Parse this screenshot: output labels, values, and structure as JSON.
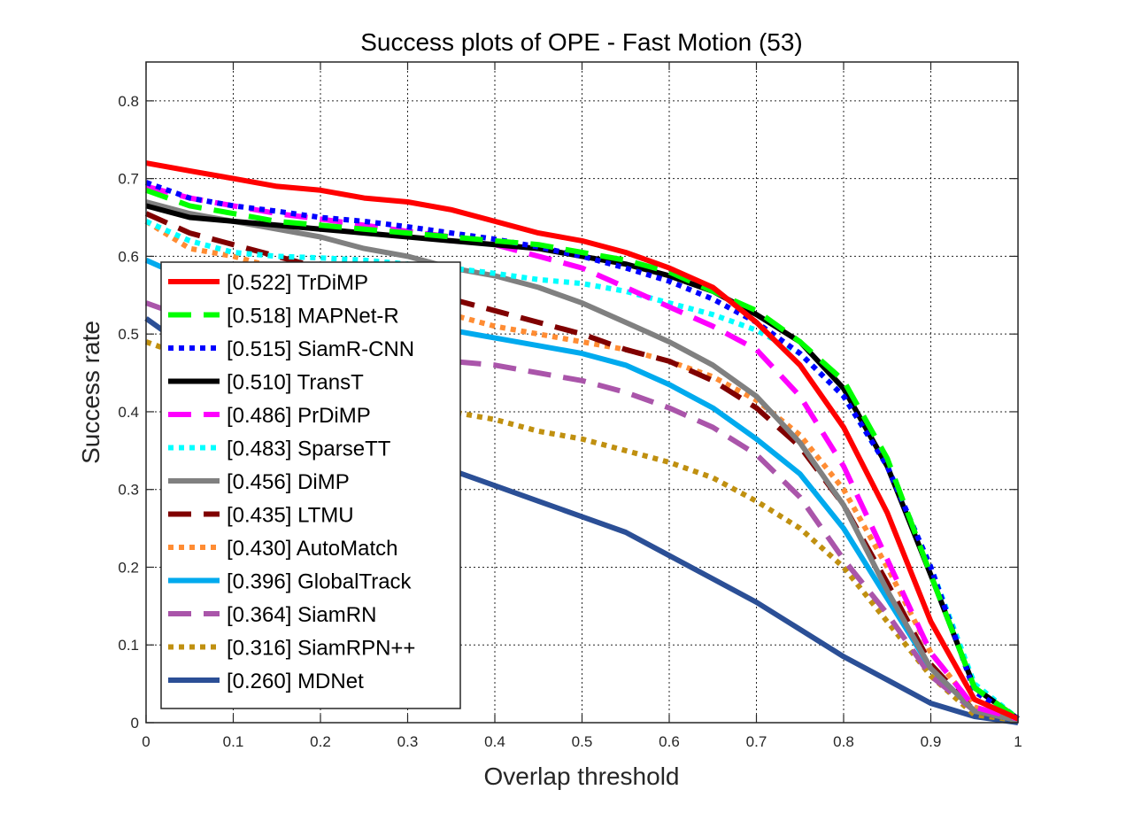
{
  "chart_data": {
    "type": "line",
    "title": "Success plots of OPE - Fast Motion (53)",
    "xlabel": "Overlap threshold",
    "ylabel": "Success rate",
    "xlim": [
      0,
      1
    ],
    "ylim": [
      0,
      0.85
    ],
    "grid": true,
    "legend_position": "left",
    "xticks": [
      0,
      0.1,
      0.2,
      0.3,
      0.4,
      0.5,
      0.6,
      0.7,
      0.8,
      0.9,
      1
    ],
    "yticks": [
      0,
      0.1,
      0.2,
      0.3,
      0.4,
      0.5,
      0.6,
      0.7,
      0.8
    ],
    "xtick_labels": [
      "0",
      "0.1",
      "0.2",
      "0.3",
      "0.4",
      "0.5",
      "0.6",
      "0.7",
      "0.8",
      "0.9",
      "1"
    ],
    "ytick_labels": [
      "0",
      "0.1",
      "0.2",
      "0.3",
      "0.4",
      "0.5",
      "0.6",
      "0.7",
      "0.8"
    ],
    "x": [
      0,
      0.05,
      0.1,
      0.15,
      0.2,
      0.25,
      0.3,
      0.35,
      0.4,
      0.45,
      0.5,
      0.55,
      0.6,
      0.65,
      0.7,
      0.75,
      0.8,
      0.85,
      0.9,
      0.95,
      1
    ],
    "series": [
      {
        "name": "TrDiMP",
        "legend": "[0.522] TrDiMP",
        "color": "#ff0000",
        "style": "solid",
        "values": [
          0.72,
          0.71,
          0.7,
          0.69,
          0.685,
          0.675,
          0.67,
          0.66,
          0.645,
          0.63,
          0.62,
          0.605,
          0.585,
          0.56,
          0.515,
          0.46,
          0.38,
          0.27,
          0.13,
          0.03,
          0.005
        ]
      },
      {
        "name": "MAPNet-R",
        "legend": "[0.518] MAPNet-R",
        "color": "#00ff00",
        "style": "dashed",
        "values": [
          0.685,
          0.665,
          0.655,
          0.645,
          0.64,
          0.635,
          0.63,
          0.625,
          0.62,
          0.615,
          0.605,
          0.595,
          0.58,
          0.555,
          0.53,
          0.49,
          0.44,
          0.34,
          0.19,
          0.045,
          0.005
        ]
      },
      {
        "name": "SiamR-CNN",
        "legend": "[0.515] SiamR-CNN",
        "color": "#0000ff",
        "style": "dotted",
        "values": [
          0.695,
          0.675,
          0.665,
          0.658,
          0.65,
          0.645,
          0.638,
          0.63,
          0.622,
          0.612,
          0.6,
          0.585,
          0.568,
          0.545,
          0.515,
          0.475,
          0.42,
          0.33,
          0.2,
          0.04,
          0.005
        ]
      },
      {
        "name": "TransT",
        "legend": "[0.510] TransT",
        "color": "#000000",
        "style": "solid",
        "values": [
          0.665,
          0.65,
          0.645,
          0.64,
          0.635,
          0.63,
          0.625,
          0.62,
          0.615,
          0.61,
          0.6,
          0.59,
          0.575,
          0.555,
          0.525,
          0.49,
          0.43,
          0.33,
          0.19,
          0.045,
          0.005
        ]
      },
      {
        "name": "PrDiMP",
        "legend": "[0.486] PrDiMP",
        "color": "#ff00ff",
        "style": "dashed",
        "values": [
          0.69,
          0.675,
          0.665,
          0.655,
          0.648,
          0.64,
          0.632,
          0.625,
          0.615,
          0.6,
          0.585,
          0.56,
          0.535,
          0.51,
          0.48,
          0.42,
          0.33,
          0.21,
          0.09,
          0.02,
          0.005
        ]
      },
      {
        "name": "SparseTT",
        "legend": "[0.483] SparseTT",
        "color": "#00ffff",
        "style": "dotted",
        "values": [
          0.645,
          0.62,
          0.605,
          0.6,
          0.598,
          0.595,
          0.59,
          0.585,
          0.578,
          0.57,
          0.565,
          0.555,
          0.54,
          0.525,
          0.505,
          0.475,
          0.42,
          0.33,
          0.2,
          0.05,
          0.005
        ]
      },
      {
        "name": "DiMP",
        "legend": "[0.456] DiMP",
        "color": "#808080",
        "style": "solid",
        "values": [
          0.67,
          0.655,
          0.645,
          0.635,
          0.625,
          0.61,
          0.6,
          0.585,
          0.575,
          0.56,
          0.54,
          0.515,
          0.49,
          0.46,
          0.42,
          0.36,
          0.28,
          0.17,
          0.07,
          0.015,
          0.003
        ]
      },
      {
        "name": "LTMU",
        "legend": "[0.435] LTMU",
        "color": "#800000",
        "style": "dashed",
        "values": [
          0.655,
          0.63,
          0.615,
          0.6,
          0.585,
          0.57,
          0.555,
          0.545,
          0.53,
          0.515,
          0.5,
          0.48,
          0.465,
          0.44,
          0.405,
          0.355,
          0.28,
          0.18,
          0.075,
          0.015,
          0.003
        ]
      },
      {
        "name": "AutoMatch",
        "legend": "[0.430] AutoMatch",
        "color": "#ff8c33",
        "style": "dotted",
        "values": [
          0.645,
          0.61,
          0.6,
          0.585,
          0.57,
          0.555,
          0.54,
          0.525,
          0.51,
          0.5,
          0.49,
          0.48,
          0.465,
          0.445,
          0.415,
          0.37,
          0.3,
          0.2,
          0.09,
          0.02,
          0.003
        ]
      },
      {
        "name": "GlobalTrack",
        "legend": "[0.396] GlobalTrack",
        "color": "#00aaee",
        "style": "solid",
        "values": [
          0.595,
          0.57,
          0.56,
          0.545,
          0.535,
          0.525,
          0.515,
          0.505,
          0.495,
          0.485,
          0.475,
          0.46,
          0.435,
          0.405,
          0.365,
          0.32,
          0.25,
          0.16,
          0.07,
          0.015,
          0.003
        ]
      },
      {
        "name": "SiamRN",
        "legend": "[0.364] SiamRN",
        "color": "#aa55aa",
        "style": "dashed",
        "values": [
          0.54,
          0.52,
          0.505,
          0.495,
          0.485,
          0.475,
          0.47,
          0.465,
          0.46,
          0.45,
          0.44,
          0.425,
          0.405,
          0.38,
          0.345,
          0.29,
          0.21,
          0.14,
          0.06,
          0.015,
          0.003
        ]
      },
      {
        "name": "SiamRPN++",
        "legend": "[0.316] SiamRPN++",
        "color": "#c09010",
        "style": "dotted",
        "values": [
          0.49,
          0.47,
          0.455,
          0.44,
          0.43,
          0.42,
          0.41,
          0.4,
          0.39,
          0.375,
          0.365,
          0.35,
          0.335,
          0.315,
          0.285,
          0.25,
          0.2,
          0.13,
          0.06,
          0.01,
          0.003
        ]
      },
      {
        "name": "MDNet",
        "legend": "[0.260] MDNet",
        "color": "#2b4f96",
        "style": "solid",
        "values": [
          0.52,
          0.48,
          0.45,
          0.42,
          0.395,
          0.365,
          0.345,
          0.325,
          0.305,
          0.285,
          0.265,
          0.245,
          0.215,
          0.185,
          0.155,
          0.12,
          0.085,
          0.055,
          0.025,
          0.008,
          0.0
        ]
      }
    ]
  }
}
